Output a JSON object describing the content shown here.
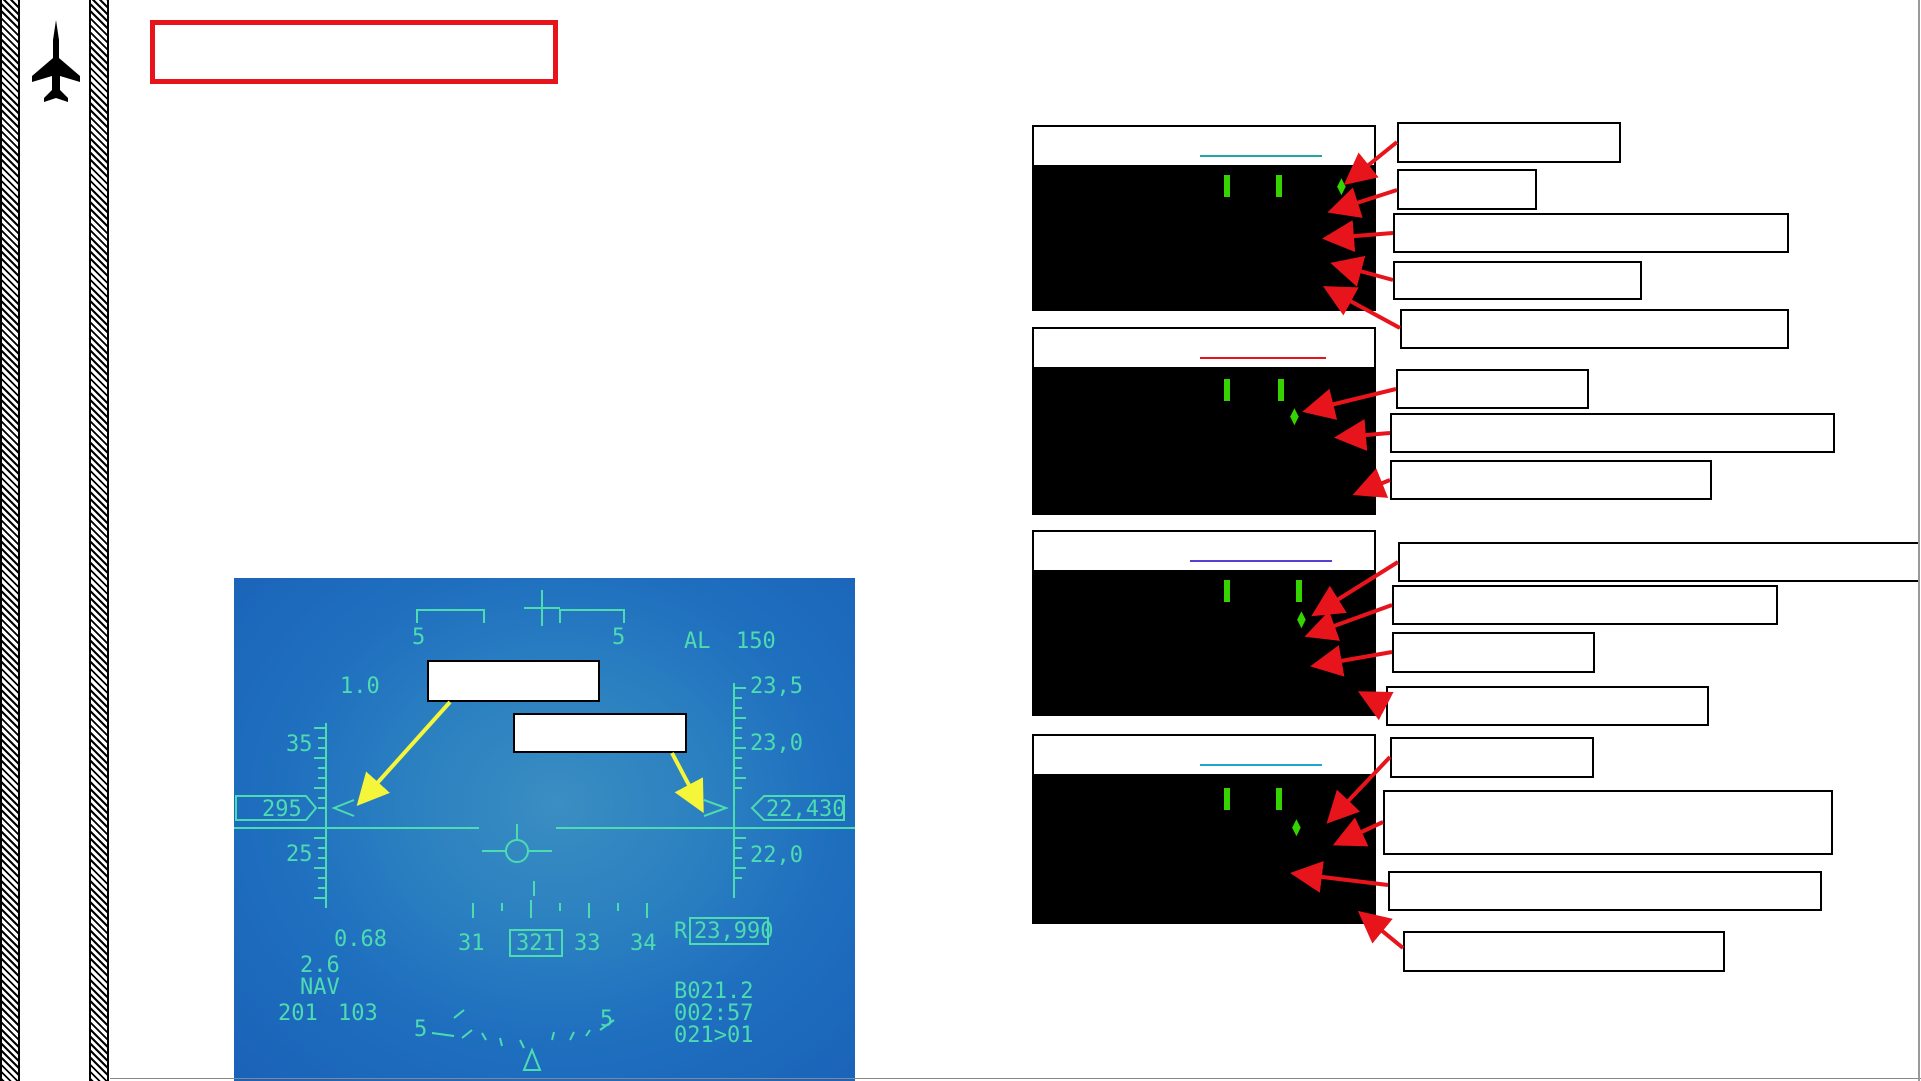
{
  "sidebar": {
    "icon": "fighter-jet-icon"
  },
  "title_box": {
    "text": "",
    "border_color": "#e8141b"
  },
  "displays": [
    {
      "id": "display-1",
      "underline_color": "#1fa7a7"
    },
    {
      "id": "display-2",
      "underline_color": "#e8141b"
    },
    {
      "id": "display-3",
      "underline_color": "#5b3fd0"
    },
    {
      "id": "display-4",
      "underline_color": "#1fa7d0"
    }
  ],
  "colors": {
    "callout_arrow": "#e8141b",
    "hud_arrow": "#f5f53a",
    "display_symbol": "#35d400",
    "hud_symbology": "#4ddcb0"
  },
  "hud": {
    "pitch_left_top": "5",
    "pitch_right_top": "5",
    "alt_label": "AL",
    "alt_value": "150",
    "scale_left_top": "1.0",
    "speed_35": "35",
    "speed_box": "295",
    "speed_25": "25",
    "alt_235": "23,5",
    "alt_230": "23,0",
    "alt_box": "22,430",
    "alt_220": "22,0",
    "mach": "0.68",
    "g_load": "2.6",
    "mode": "NAV",
    "left_bottom_1": "201",
    "left_bottom_2": "103",
    "heading_31": "31",
    "heading_box": "321",
    "heading_33": "33",
    "heading_34": "34",
    "radar_alt_prefix": "R",
    "radar_alt_box": "23,990",
    "steer_1": "B021.2",
    "steer_2": "002:57",
    "steer_3": "021>01",
    "bank_left": "5",
    "bank_right": "5"
  }
}
